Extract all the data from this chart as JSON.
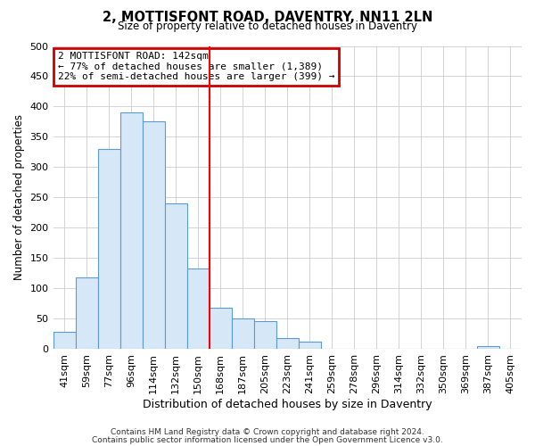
{
  "title": "2, MOTTISFONT ROAD, DAVENTRY, NN11 2LN",
  "subtitle": "Size of property relative to detached houses in Daventry",
  "xlabel": "Distribution of detached houses by size in Daventry",
  "ylabel": "Number of detached properties",
  "bar_labels": [
    "41sqm",
    "59sqm",
    "77sqm",
    "96sqm",
    "114sqm",
    "132sqm",
    "150sqm",
    "168sqm",
    "187sqm",
    "205sqm",
    "223sqm",
    "241sqm",
    "259sqm",
    "278sqm",
    "296sqm",
    "314sqm",
    "332sqm",
    "350sqm",
    "369sqm",
    "387sqm",
    "405sqm"
  ],
  "bar_heights": [
    28,
    118,
    330,
    390,
    375,
    240,
    133,
    68,
    50,
    46,
    18,
    13,
    0,
    0,
    0,
    0,
    0,
    0,
    0,
    5,
    0
  ],
  "bar_color": "#d6e8f7",
  "bar_edge_color": "#5b9bd5",
  "red_line_x": 6.5,
  "annotation_title": "2 MOTTISFONT ROAD: 142sqm",
  "annotation_line1": "← 77% of detached houses are smaller (1,389)",
  "annotation_line2": "22% of semi-detached houses are larger (399) →",
  "annotation_box_color": "#ffffff",
  "annotation_box_edge": "#cc0000",
  "ylim": [
    0,
    500
  ],
  "yticks": [
    0,
    50,
    100,
    150,
    200,
    250,
    300,
    350,
    400,
    450,
    500
  ],
  "footer1": "Contains HM Land Registry data © Crown copyright and database right 2024.",
  "footer2": "Contains public sector information licensed under the Open Government Licence v3.0.",
  "background_color": "#ffffff",
  "plot_background": "#ffffff",
  "grid_color": "#cccccc"
}
